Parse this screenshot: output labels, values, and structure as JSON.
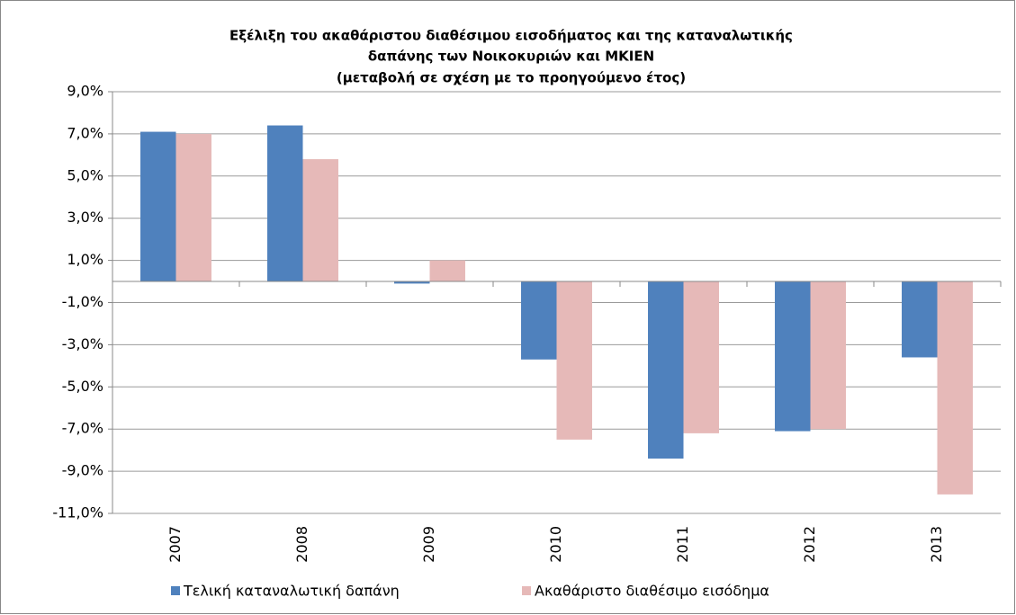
{
  "chart_data": {
    "type": "bar",
    "title": [
      "Εξέλιξη του ακαθάριστου  διαθέσιμου εισοδήματος και της καταναλωτικής",
      "δαπάνης των Νοικοκυριών και ΜΚΙΕΝ",
      "(μεταβολή σε σχέση με το προηγούμενο έτος)"
    ],
    "categories": [
      "2007",
      "2008",
      "2009",
      "2010",
      "2011",
      "2012",
      "2013"
    ],
    "series": [
      {
        "name": "Τελική καταναλωτική δαπάνη",
        "color": "#4f81bd",
        "values": [
          7.1,
          7.4,
          -0.1,
          -3.7,
          -8.4,
          -7.1,
          -3.6
        ]
      },
      {
        "name": "Ακαθάριστο διαθέσιμο εισόδημα",
        "color": "#e6b9b8",
        "values": [
          7.0,
          5.8,
          1.0,
          -7.5,
          -7.2,
          -7.0,
          -10.1
        ]
      }
    ],
    "ylim": [
      -11,
      9
    ],
    "yticks": [
      {
        "value": 9,
        "label": "9,0%"
      },
      {
        "value": 7,
        "label": "7,0%"
      },
      {
        "value": 5,
        "label": "5,0%"
      },
      {
        "value": 3,
        "label": "3,0%"
      },
      {
        "value": 1,
        "label": "1,0%"
      },
      {
        "value": -1,
        "label": "-1,0%"
      },
      {
        "value": -3,
        "label": "-3,0%"
      },
      {
        "value": -5,
        "label": "-5,0%"
      },
      {
        "value": -7,
        "label": "-7,0%"
      },
      {
        "value": -9,
        "label": "-9,0%"
      },
      {
        "value": -11,
        "label": "-11,0%"
      }
    ],
    "grid": true,
    "legend": "bottom"
  }
}
